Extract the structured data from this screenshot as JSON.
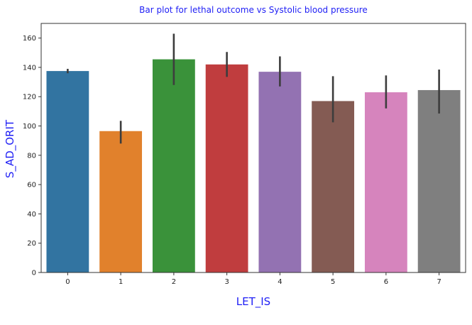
{
  "chart_data": {
    "type": "bar",
    "title": "Bar plot for lethal outcome vs Systolic blood pressure",
    "xlabel": "LET_IS",
    "ylabel": "S_AD_ORIT",
    "categories": [
      "0",
      "1",
      "2",
      "3",
      "4",
      "5",
      "6",
      "7"
    ],
    "values": [
      137.5,
      96.5,
      145.5,
      142.0,
      137.0,
      117.0,
      123.0,
      124.5
    ],
    "error_low": [
      136.0,
      88.0,
      128.0,
      133.5,
      127.0,
      102.5,
      112.0,
      108.5
    ],
    "error_high": [
      139.0,
      103.5,
      163.0,
      150.5,
      147.5,
      134.0,
      134.5,
      138.5
    ],
    "colors": [
      "#3274a1",
      "#e1812c",
      "#3a923a",
      "#c03d3e",
      "#9372b2",
      "#845b53",
      "#d684bd",
      "#7f7f7f"
    ],
    "ylim": [
      0,
      170
    ],
    "yticks": [
      0,
      20,
      40,
      60,
      80,
      100,
      120,
      140,
      160
    ],
    "grid": false,
    "legend": "none",
    "title_color": "#1f1ff5",
    "label_color": "#1f1ff5"
  }
}
